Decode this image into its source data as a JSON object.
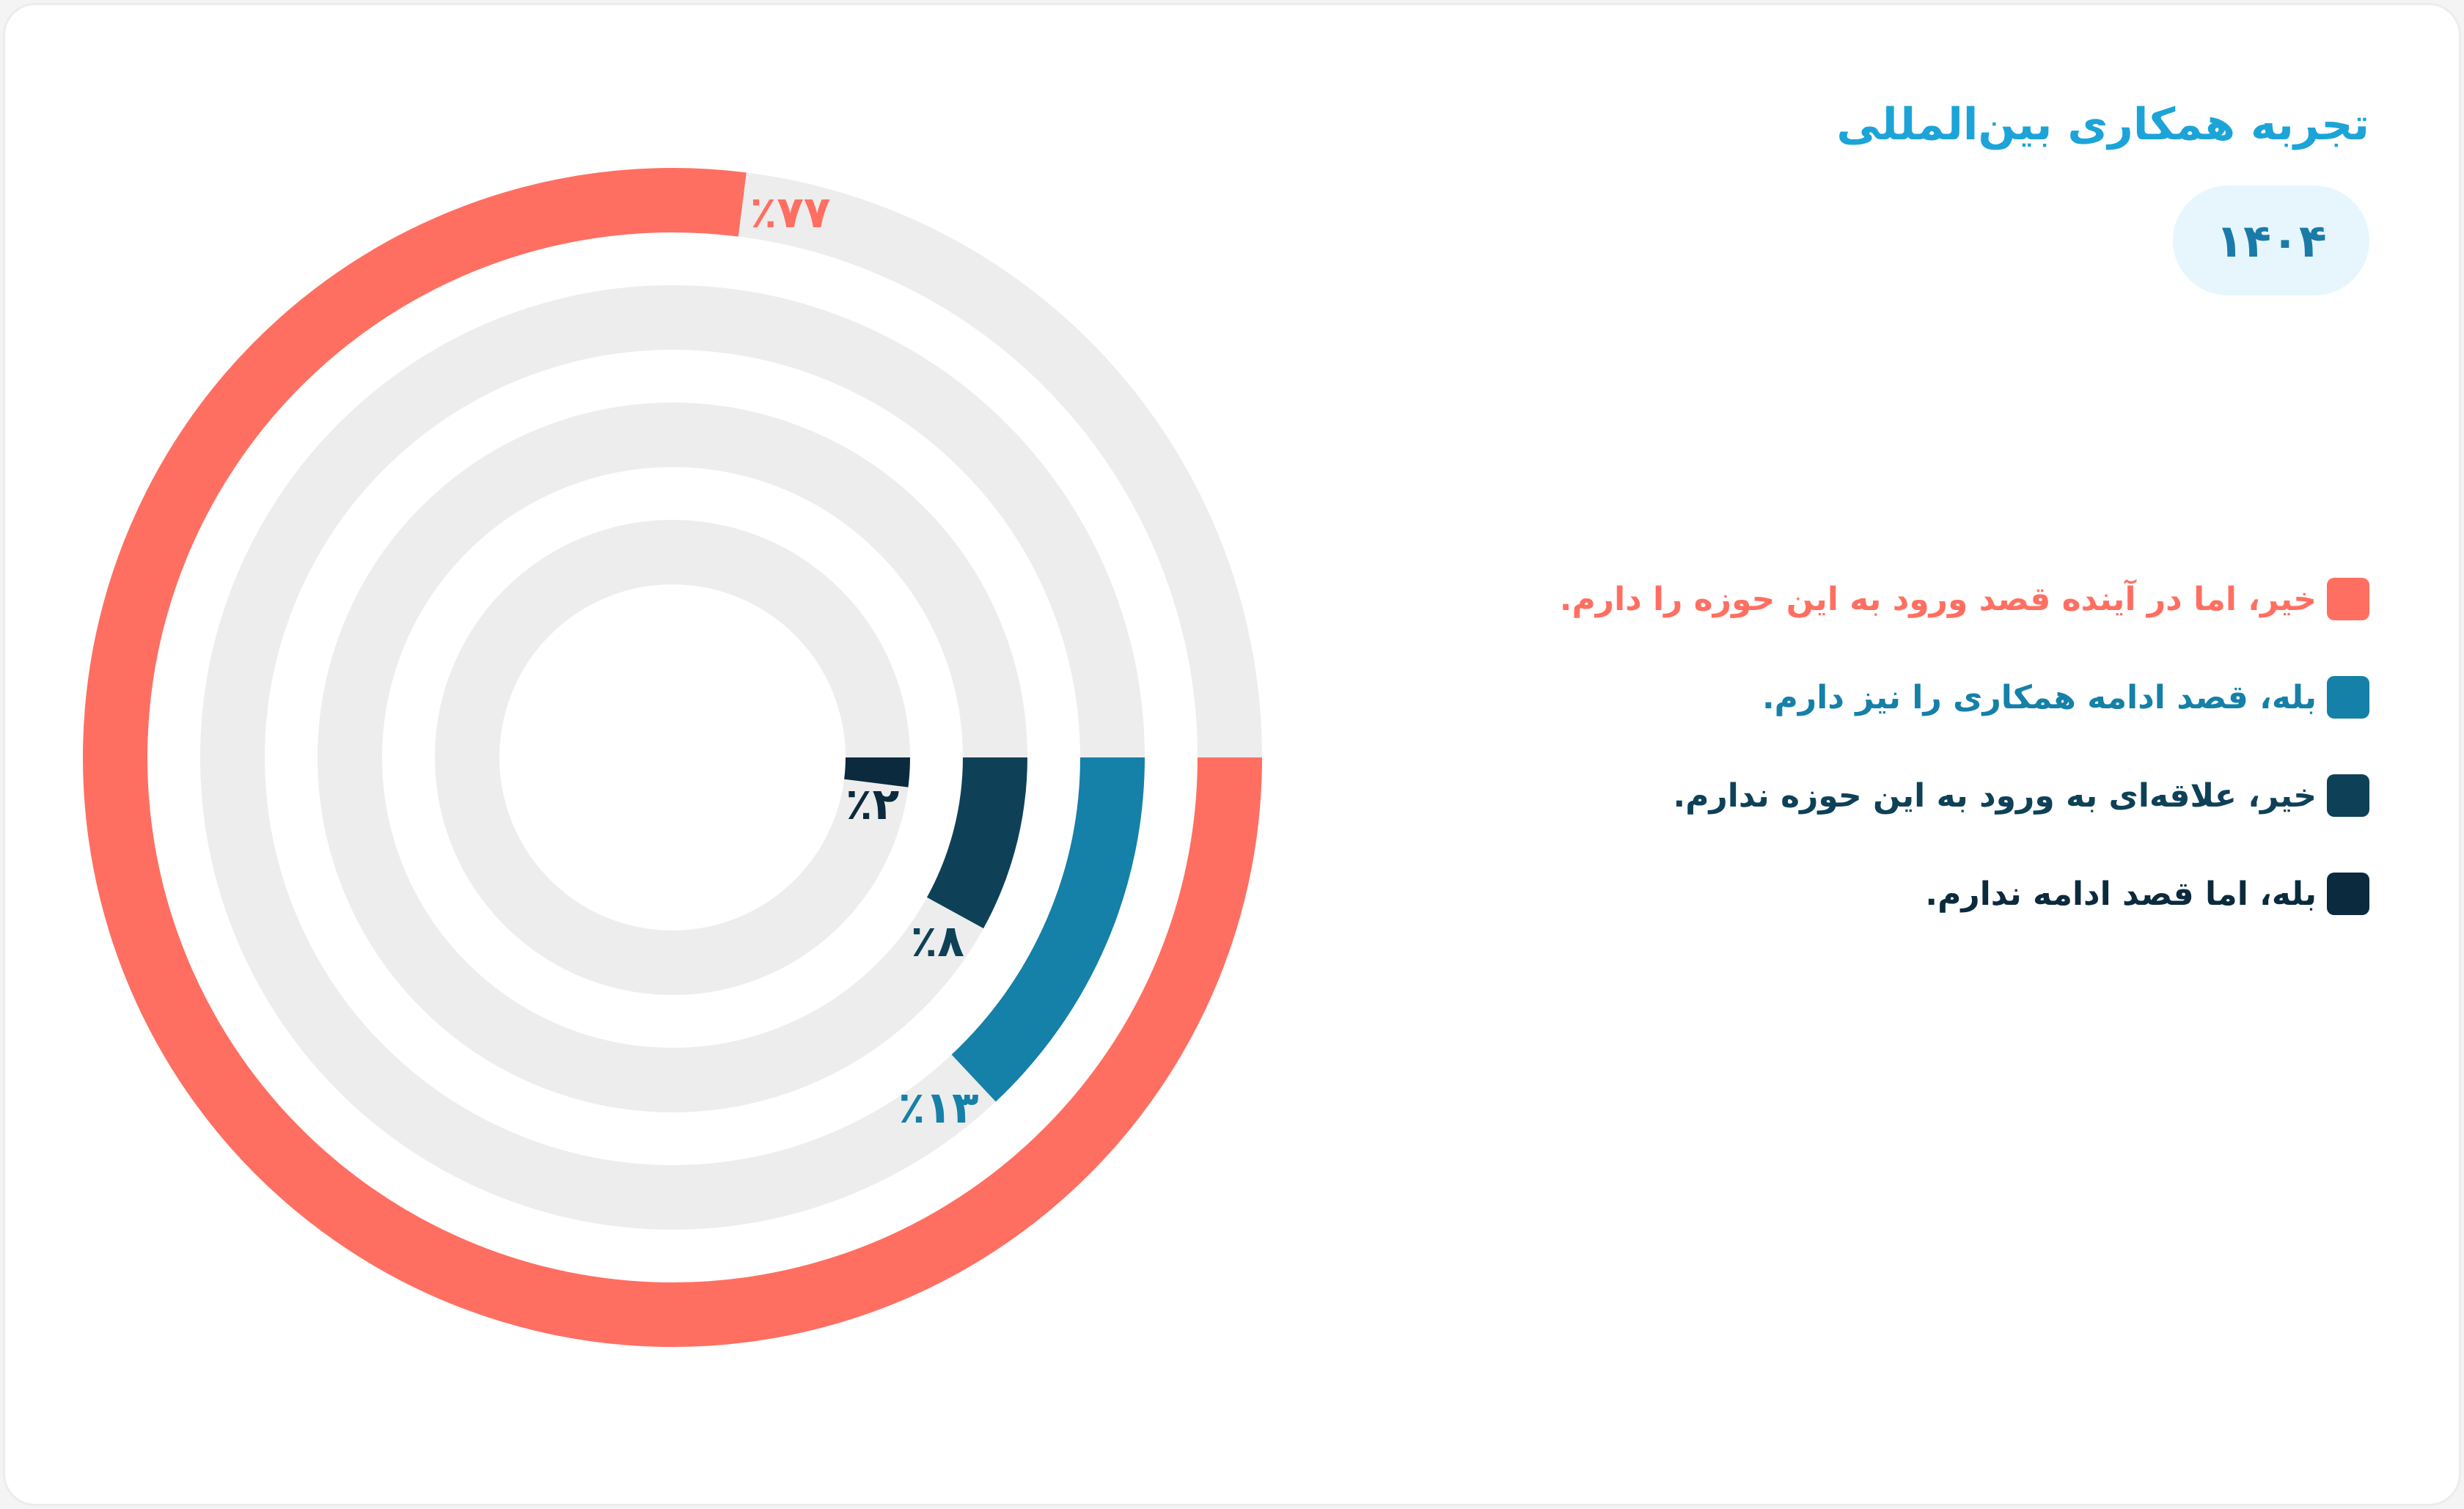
{
  "header": {
    "title": "تجربه همکاری بین‌المللی",
    "year": "۱۴۰۴"
  },
  "colors": {
    "track": "#ededed",
    "coral": "#ff6f61",
    "blue": "#1580a8",
    "teal": "#0e4157",
    "navy": "#0b2a3d"
  },
  "chart_data": {
    "type": "radial-bar",
    "series": [
      {
        "name": "خیر، اما در آینده قصد ورود به این حوزه را دارم.",
        "value": 77,
        "label": "٪۷۷",
        "color": "#ff6f61"
      },
      {
        "name": "بله، قصد ادامه همکاری را نیز دارم.",
        "value": 13,
        "label": "٪۱۳",
        "color": "#1580a8"
      },
      {
        "name": "خیر، علاقه‌ای به ورود به این حوزه ندارم.",
        "value": 8,
        "label": "٪۸",
        "color": "#0e4157"
      },
      {
        "name": "بله، اما قصد ادامه ندارم.",
        "value": 2,
        "label": "٪۲",
        "color": "#0b2a3d"
      }
    ]
  },
  "legend": {
    "items": [
      {
        "label": "خیر، اما در آینده قصد ورود به این حوزه را دارم.",
        "color": "#ff6f61",
        "text_color": "#ff6f61"
      },
      {
        "label": "بله، قصد ادامه همکاری را نیز دارم.",
        "color": "#1580a8",
        "text_color": "#1580a8"
      },
      {
        "label": "خیر، علاقه‌ای به ورود به این حوزه ندارم.",
        "color": "#0e4157",
        "text_color": "#0e4157"
      },
      {
        "label": "بله، اما قصد ادامه ندارم.",
        "color": "#0b2a3d",
        "text_color": "#0b2a3d"
      }
    ]
  }
}
